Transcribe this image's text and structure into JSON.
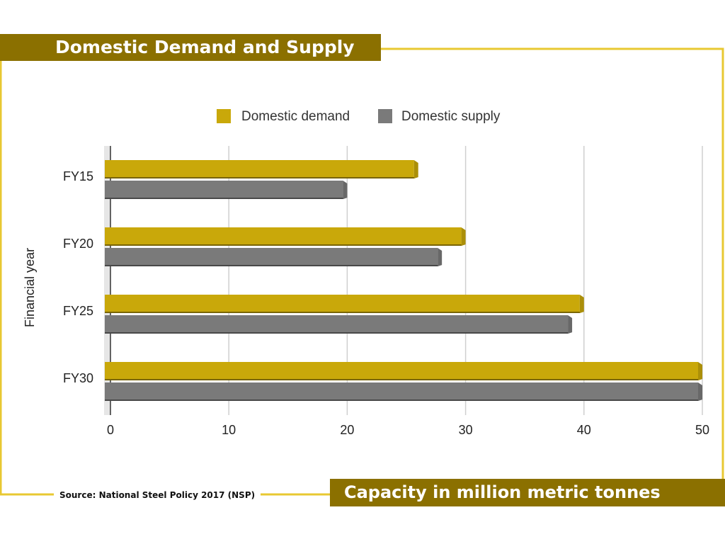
{
  "banner": {
    "title": "Domestic Demand and Supply",
    "unit_label": "Capacity in million metric tonnes",
    "source": "Source: National Steel Policy 2017 (NSP)"
  },
  "colors": {
    "demand": "#c9a80a",
    "supply": "#7a7a7a",
    "banner": "#8b7000",
    "frame": "#e8c832"
  },
  "chart_data": {
    "type": "bar",
    "orientation": "horizontal",
    "categories": [
      "FY15",
      "FY20",
      "FY25",
      "FY30"
    ],
    "series": [
      {
        "name": "Domestic demand",
        "values": [
          26,
          30,
          40,
          50
        ]
      },
      {
        "name": "Domestic supply",
        "values": [
          20,
          28,
          39,
          50
        ]
      }
    ],
    "xlim": [
      0,
      50
    ],
    "xticks": [
      "0",
      "10",
      "20",
      "30",
      "40",
      "50"
    ],
    "xlabel": "",
    "ylabel": "Financial year",
    "grid": true,
    "legend": "top-center"
  }
}
